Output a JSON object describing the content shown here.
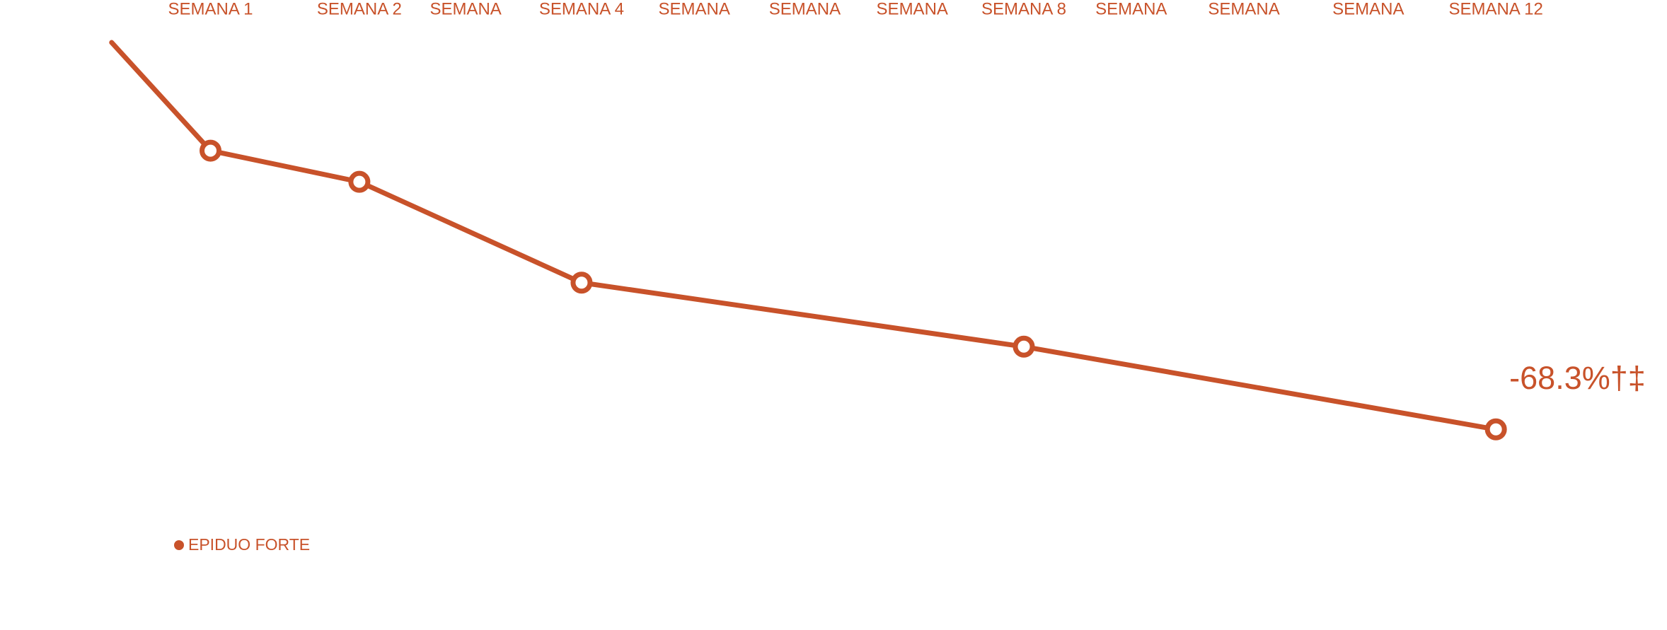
{
  "chart_data": {
    "type": "line",
    "x": [
      0,
      1,
      2,
      4,
      8,
      12
    ],
    "xticks": [
      {
        "value": 1,
        "label": "SEMANA 1"
      },
      {
        "value": 2,
        "label": "SEMANA 2"
      },
      {
        "value": 3,
        "label": "SEMANA"
      },
      {
        "value": 4,
        "label": "SEMANA 4"
      },
      {
        "value": 5,
        "label": "SEMANA"
      },
      {
        "value": 6,
        "label": "SEMANA"
      },
      {
        "value": 7,
        "label": "SEMANA"
      },
      {
        "value": 8,
        "label": "SEMANA 8"
      },
      {
        "value": 9,
        "label": "SEMANA"
      },
      {
        "value": 10,
        "label": "SEMANA"
      },
      {
        "value": 11,
        "label": "SEMANA"
      },
      {
        "value": 12,
        "label": "SEMANA 12"
      }
    ],
    "ylim": [
      -80,
      5
    ],
    "series": [
      {
        "name": "EPIDUO FORTE",
        "color": "#c8522a",
        "values": [
          0,
          -19.1,
          -24.6,
          -42.4,
          -53.7,
          -68.3
        ],
        "value_labels": [
          null,
          null,
          null,
          null,
          null,
          "-68.3%†‡"
        ]
      }
    ]
  }
}
